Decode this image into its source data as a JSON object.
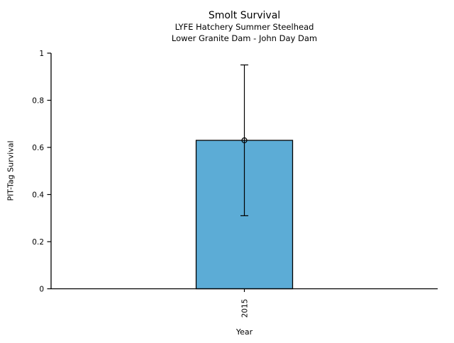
{
  "chart_data": {
    "type": "bar",
    "title": "Smolt Survival",
    "subtitle1": "LYFE Hatchery Summer Steelhead",
    "subtitle2": "Lower Granite Dam - John Day Dam",
    "xlabel": "Year",
    "ylabel": "PIT-Tag Survival",
    "categories": [
      "2015"
    ],
    "values": [
      0.63
    ],
    "error_low": [
      0.31
    ],
    "error_high": [
      0.95
    ],
    "ylim": [
      0,
      1
    ],
    "yticks": [
      0,
      0.2,
      0.4,
      0.6,
      0.8,
      1
    ],
    "ytick_labels": [
      "0",
      "0.2",
      "0.4",
      "0.6",
      "0.8",
      "1"
    ],
    "grid": false,
    "legend": null,
    "bar_color": "#5CACD6",
    "bar_edge_color": "#000000",
    "error_color": "#000000",
    "marker": "open-circle",
    "background_color": "#ffffff"
  }
}
